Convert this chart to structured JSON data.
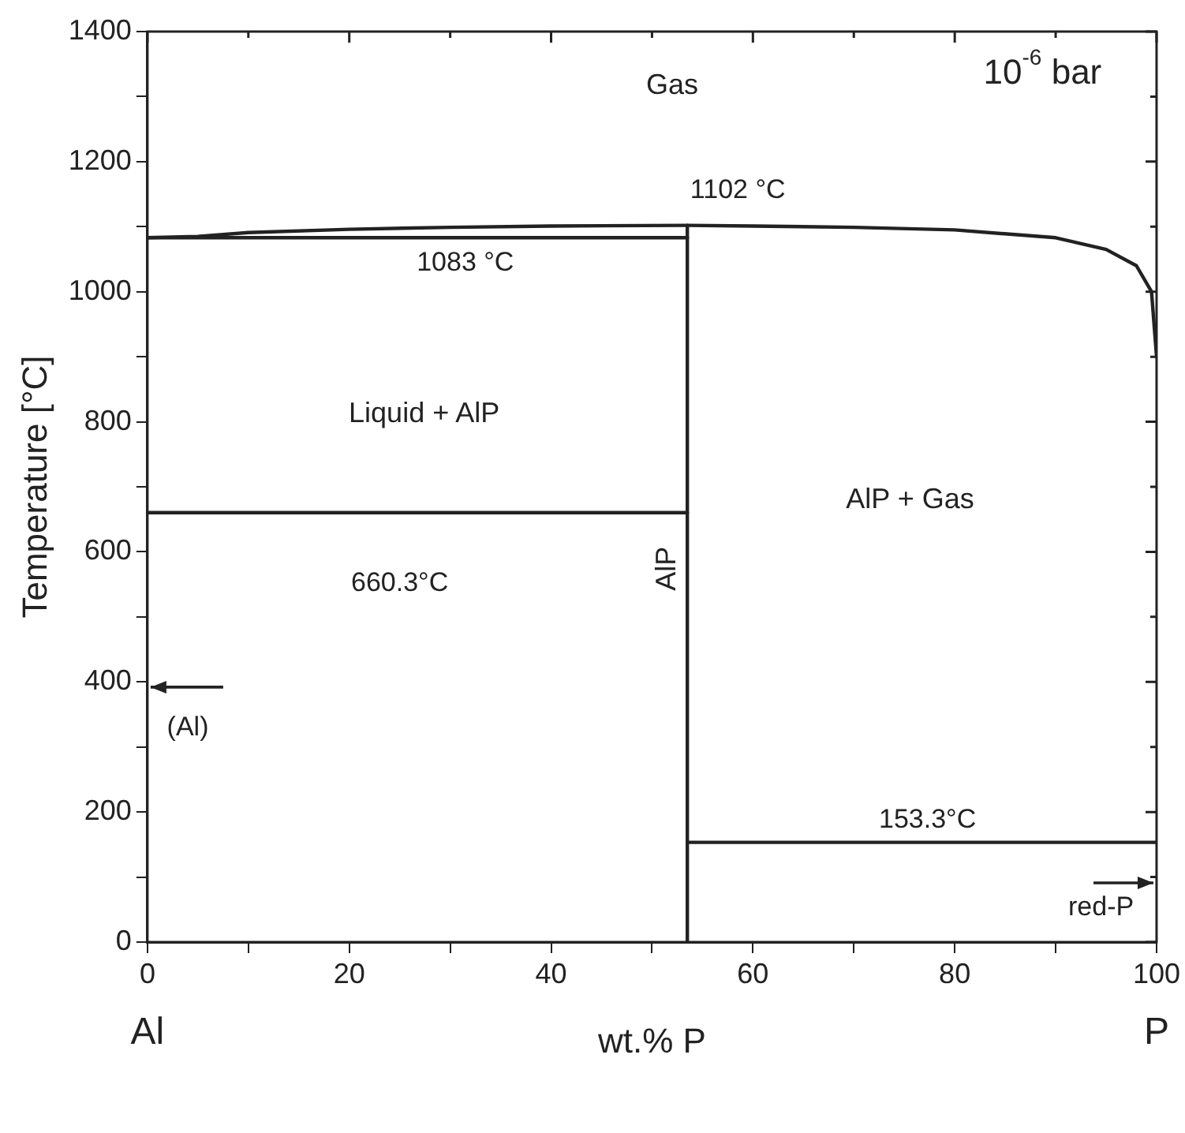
{
  "chart_data": {
    "type": "line",
    "xlabel": "wt.% P",
    "ylabel": "Temperature [°C]",
    "xlim": [
      0,
      100
    ],
    "ylim": [
      0,
      1400
    ],
    "xticks": [
      0,
      {
        "value": 10,
        "label": null
      },
      20,
      {
        "value": 30,
        "label": null
      },
      40,
      {
        "value": 50,
        "label": null
      },
      60,
      {
        "value": 70,
        "label": null
      },
      80,
      {
        "value": 90,
        "label": null
      },
      100
    ],
    "yticks": [
      0,
      {
        "value": 100,
        "label": null
      },
      200,
      {
        "value": 300,
        "label": null
      },
      400,
      {
        "value": 500,
        "label": null
      },
      600,
      {
        "value": 700,
        "label": null
      },
      800,
      {
        "value": 900,
        "label": null
      },
      1000,
      {
        "value": 1100,
        "label": null
      },
      1200,
      {
        "value": 1300,
        "label": null
      },
      1400
    ],
    "series": [
      {
        "type": "line",
        "color": "#222222",
        "x": [
          0,
          5,
          10,
          20,
          30,
          40,
          53.5,
          60,
          70,
          80,
          90,
          95,
          98,
          99.5,
          100
        ],
        "values": [
          1083,
          1085,
          1091,
          1096,
          1099,
          1101,
          1102,
          1101,
          1099,
          1095,
          1083,
          1065,
          1040,
          1000,
          900
        ]
      },
      {
        "type": "line",
        "color": "#222222",
        "x": [
          53.5,
          53.5
        ],
        "values": [
          0,
          1102
        ]
      },
      {
        "type": "line",
        "color": "#222222",
        "x": [
          0,
          53.5
        ],
        "values": [
          1083,
          1083
        ]
      },
      {
        "type": "line",
        "color": "#222222",
        "x": [
          0,
          53.5
        ],
        "values": [
          660.3,
          660.3
        ]
      },
      {
        "type": "line",
        "color": "#222222",
        "x": [
          53.5,
          100
        ],
        "values": [
          153.3,
          153.3
        ]
      }
    ],
    "annotations": [
      "Gas",
      "10$^{-6}$ bar",
      {
        "text": "1102 °C",
        "x": 53.5,
        "y": 1102
      },
      {
        "text": "1083 °C",
        "x": 31.5,
        "y": 1083
      },
      "Liquid + AlP",
      {
        "text": "660.3°C",
        "x": 25,
        "y": 660.3
      },
      "AlP + Gas",
      "AlP",
      "(Al)",
      {
        "text": "153.3°C",
        "x": 77.3,
        "y": 153.3
      },
      "red-P",
      "Al",
      "P"
    ],
    "legend": false,
    "grid": false,
    "line_style": "solid",
    "marker": "none"
  }
}
